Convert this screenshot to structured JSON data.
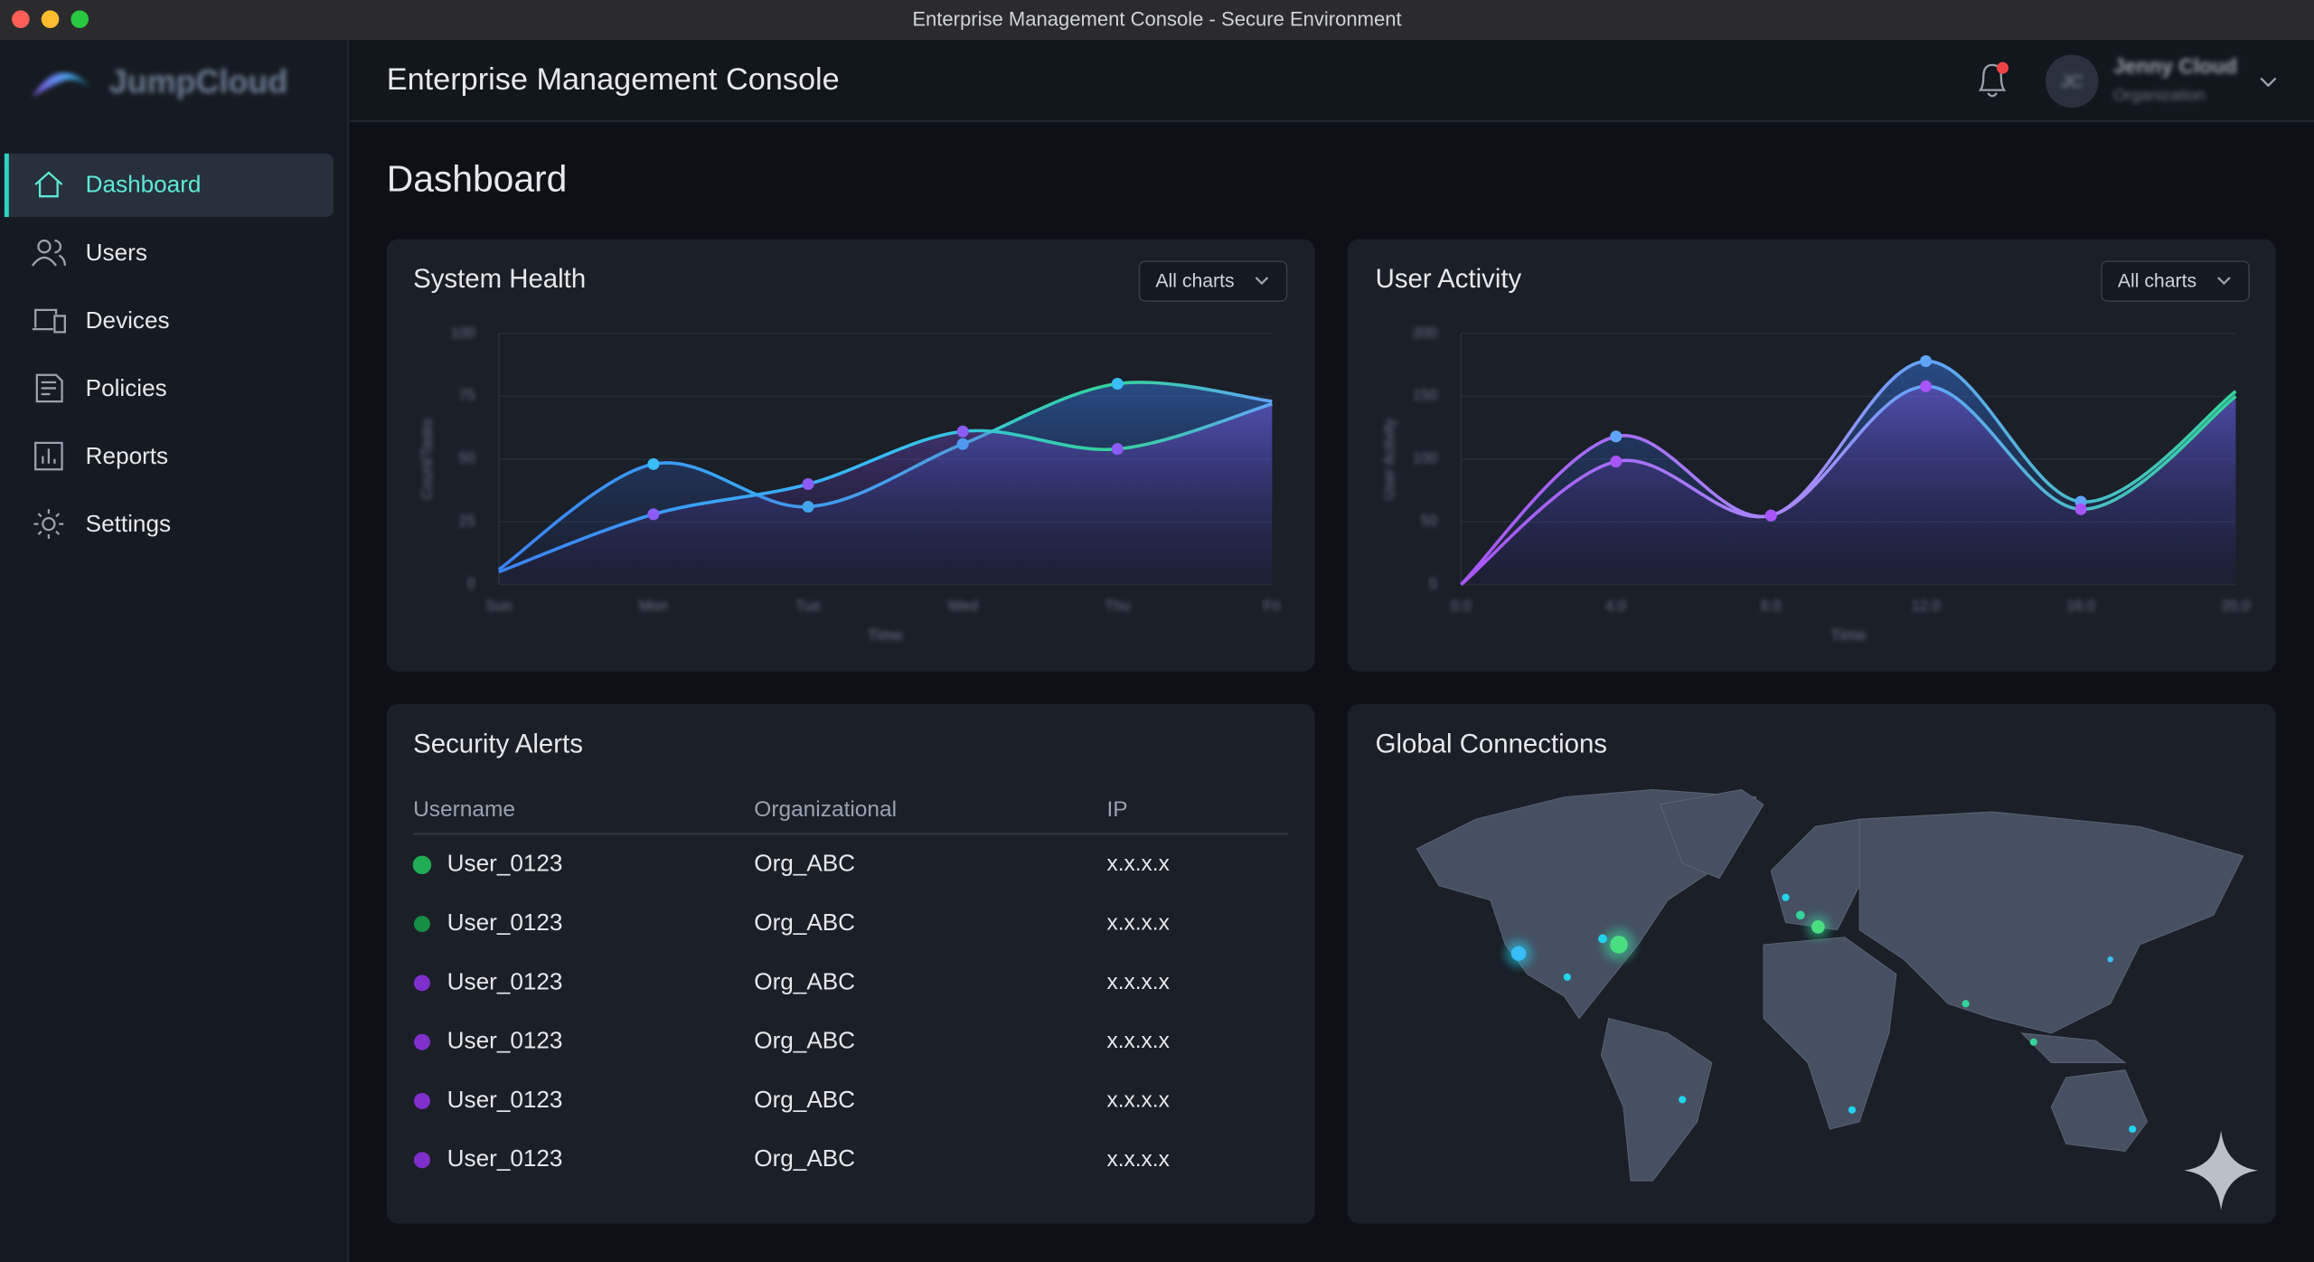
{
  "window_title": "Enterprise Management Console - Secure Environment",
  "sidebar": {
    "logo": "JumpCloud",
    "nav": [
      "Dashboard",
      "Users",
      "Devices",
      "Policies",
      "Reports",
      "Settings"
    ],
    "active": 0
  },
  "header": {
    "title": "Enterprise Management Console",
    "user_initials": "JC",
    "user_name": "Jenny Cloud",
    "user_org": "Organization"
  },
  "page_title": "Dashboard",
  "system_health": {
    "title": "System Health",
    "dropdown": "All charts",
    "chart_data": {
      "type": "line",
      "categories": [
        "Sun",
        "Mon",
        "Tue",
        "Wed",
        "Thu",
        "Fri"
      ],
      "series": [
        {
          "color": "#38bdf8",
          "values": [
            6,
            48,
            31,
            56,
            80,
            73
          ]
        },
        {
          "color": "#8b5cf6",
          "values": [
            5,
            28,
            40,
            61,
            54,
            72
          ]
        }
      ],
      "ylim": [
        0,
        100
      ],
      "yticks": [
        0,
        25,
        50,
        75,
        100
      ],
      "y_label": "Count/Tasks",
      "x_label": "Time",
      "grid": true
    }
  },
  "user_activity": {
    "title": "User Activity",
    "dropdown": "All charts",
    "chart_data": {
      "type": "line",
      "x": [
        0,
        4,
        8,
        12,
        16,
        20
      ],
      "series": [
        {
          "color": "#60a5fa",
          "values": [
            0,
            118,
            55,
            178,
            66,
            154
          ]
        },
        {
          "color": "#a855f7",
          "values": [
            0,
            98,
            55,
            158,
            60,
            150
          ]
        }
      ],
      "xlim": [
        0,
        20
      ],
      "xticks": [
        {
          "value": 0,
          "label": "0.0"
        },
        {
          "value": 4,
          "label": "4.0"
        },
        {
          "value": 8,
          "label": "8.0"
        },
        {
          "value": 12,
          "label": "12.0"
        },
        {
          "value": 16,
          "label": "16.0"
        },
        {
          "value": 20,
          "label": "20.0"
        }
      ],
      "ylim": [
        0,
        200
      ],
      "yticks": [
        0,
        50,
        100,
        150,
        200
      ],
      "y_label": "User Activity",
      "x_label": "Time",
      "grid": true
    }
  },
  "security_alerts": {
    "title": "Security Alerts",
    "table": {
      "columns": [
        "Username",
        "Organizational",
        "IP"
      ],
      "rows": [
        {
          "username": "User_0123",
          "org": "Org_ABC",
          "ip": "x.x.x.x",
          "color": "#22c55e"
        },
        {
          "username": "User_0123",
          "org": "Org_ABC",
          "ip": "x.x.x.x",
          "color": "#16a34a"
        },
        {
          "username": "User_0123",
          "org": "Org_ABC",
          "ip": "x.x.x.x",
          "color": "#9333ea"
        },
        {
          "username": "User_0123",
          "org": "Org_ABC",
          "ip": "x.x.x.x",
          "color": "#9333ea"
        },
        {
          "username": "User_0123",
          "org": "Org_ABC",
          "ip": "x.x.x.x",
          "color": "#9333ea"
        },
        {
          "username": "User_0123",
          "org": "Org_ABC",
          "ip": "x.x.x.x",
          "color": "#9333ea"
        }
      ]
    }
  },
  "global_connections": {
    "title": "Global Connections"
  }
}
